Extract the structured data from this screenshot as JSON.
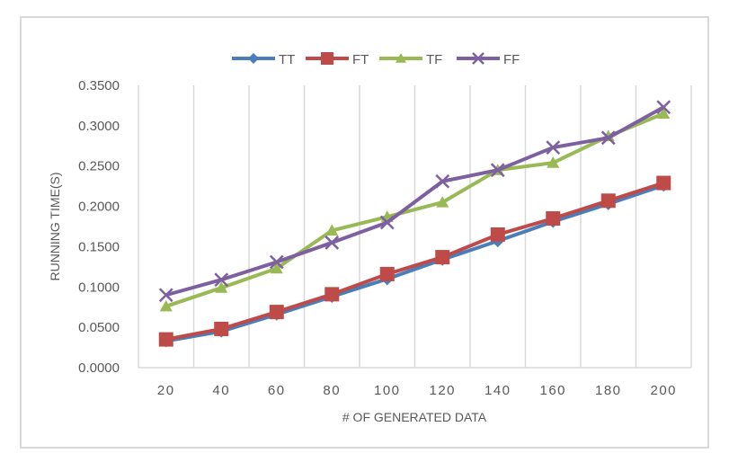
{
  "chart_data": {
    "type": "line",
    "title": "",
    "xlabel": "# OF GENERATED DATA",
    "ylabel": "RUNNING TIME(S)",
    "categories": [
      "20",
      "40",
      "60",
      "80",
      "100",
      "120",
      "140",
      "160",
      "180",
      "200"
    ],
    "ylim": [
      0,
      0.35
    ],
    "yticks": [
      "0.0000",
      "0.0500",
      "0.1000",
      "0.1500",
      "0.2000",
      "0.2500",
      "0.3000",
      "0.3500"
    ],
    "grid": "vertical",
    "legend_position": "top",
    "series": [
      {
        "name": "TT",
        "color": "#4a7ebb",
        "marker": "diamond",
        "values": [
          0.033,
          0.045,
          0.066,
          0.088,
          0.11,
          0.134,
          0.157,
          0.181,
          0.203,
          0.226
        ]
      },
      {
        "name": "FT",
        "color": "#be4b48",
        "marker": "square",
        "values": [
          0.035,
          0.048,
          0.069,
          0.091,
          0.116,
          0.137,
          0.165,
          0.185,
          0.207,
          0.229
        ]
      },
      {
        "name": "TF",
        "color": "#98b954",
        "marker": "triangle",
        "values": [
          0.076,
          0.099,
          0.123,
          0.17,
          0.187,
          0.205,
          0.245,
          0.254,
          0.287,
          0.315
        ]
      },
      {
        "name": "FF",
        "color": "#7d60a0",
        "marker": "x",
        "values": [
          0.09,
          0.109,
          0.131,
          0.155,
          0.18,
          0.231,
          0.245,
          0.273,
          0.285,
          0.323
        ]
      }
    ]
  }
}
